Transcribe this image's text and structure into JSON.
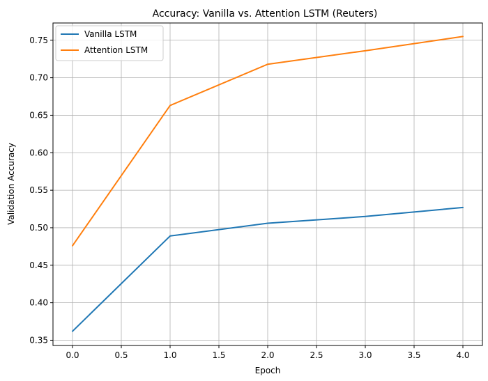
{
  "chart_data": {
    "type": "line",
    "title": "Accuracy: Vanilla vs. Attention LSTM (Reuters)",
    "xlabel": "Epoch",
    "ylabel": "Validation Accuracy",
    "x": [
      0,
      1,
      2,
      3,
      4
    ],
    "xlim": [
      -0.2,
      4.2
    ],
    "ylim": [
      0.343,
      0.773
    ],
    "xticks": [
      0.0,
      0.5,
      1.0,
      1.5,
      2.0,
      2.5,
      3.0,
      3.5,
      4.0
    ],
    "xtick_labels": [
      "0.0",
      "0.5",
      "1.0",
      "1.5",
      "2.0",
      "2.5",
      "3.0",
      "3.5",
      "4.0"
    ],
    "yticks": [
      0.35,
      0.4,
      0.45,
      0.5,
      0.55,
      0.6,
      0.65,
      0.7,
      0.75
    ],
    "ytick_labels": [
      "0.35",
      "0.40",
      "0.45",
      "0.50",
      "0.55",
      "0.60",
      "0.65",
      "0.70",
      "0.75"
    ],
    "grid": true,
    "legend_position": "top-left",
    "series": [
      {
        "name": "Vanilla LSTM",
        "color": "#1f77b4",
        "values": [
          0.362,
          0.489,
          0.506,
          0.515,
          0.527
        ]
      },
      {
        "name": "Attention LSTM",
        "color": "#ff7f0e",
        "values": [
          0.476,
          0.663,
          0.718,
          0.736,
          0.755
        ]
      }
    ]
  }
}
